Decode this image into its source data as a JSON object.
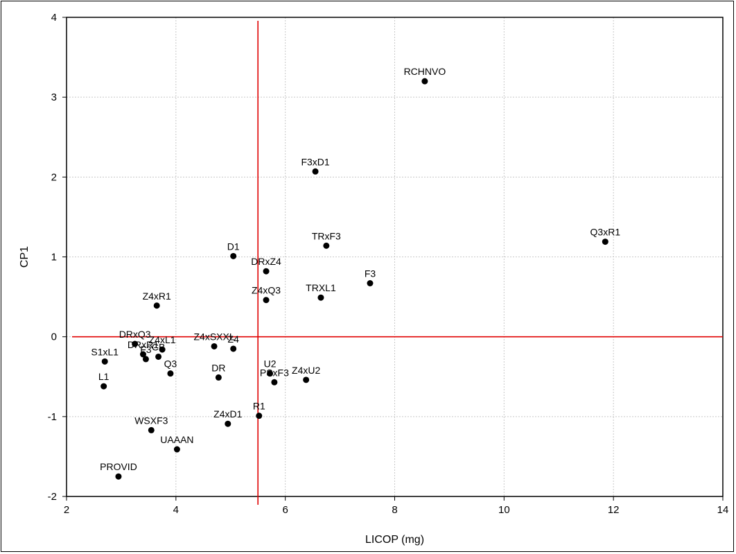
{
  "chart_data": {
    "type": "scatter",
    "title": "",
    "xlabel": "LICOP (mg)",
    "ylabel": "CP1",
    "xlim": [
      2,
      14
    ],
    "ylim": [
      -2,
      4
    ],
    "xticks": [
      2,
      4,
      6,
      8,
      10,
      12,
      14
    ],
    "yticks": [
      -2,
      -1,
      0,
      1,
      2,
      3,
      4
    ],
    "grid": true,
    "reference_lines": {
      "vertical_x": 5.5,
      "horizontal_y": 0,
      "color": "#e00000"
    },
    "marker_color": "#000000",
    "points": [
      {
        "label": "RCHNVO",
        "x": 8.55,
        "y": 3.2
      },
      {
        "label": "F3xD1",
        "x": 6.55,
        "y": 2.07
      },
      {
        "label": "Q3xR1",
        "x": 11.85,
        "y": 1.19
      },
      {
        "label": "TRxF3",
        "x": 6.75,
        "y": 1.14
      },
      {
        "label": "D1",
        "x": 5.05,
        "y": 1.01
      },
      {
        "label": "DRxZ4",
        "x": 5.65,
        "y": 0.82
      },
      {
        "label": "F3",
        "x": 7.55,
        "y": 0.67
      },
      {
        "label": "TRXL1",
        "x": 6.65,
        "y": 0.49
      },
      {
        "label": "Z4xQ3",
        "x": 5.65,
        "y": 0.46
      },
      {
        "label": "Z4xR1",
        "x": 3.65,
        "y": 0.39
      },
      {
        "label": "DRxQ3",
        "x": 3.25,
        "y": -0.09
      },
      {
        "label": "Z4xSXXL",
        "x": 4.7,
        "y": -0.12
      },
      {
        "label": "Z4",
        "x": 5.05,
        "y": -0.15
      },
      {
        "label": "Z4xL1",
        "x": 3.75,
        "y": -0.16
      },
      {
        "label": "CB",
        "x": 3.68,
        "y": -0.25
      },
      {
        "label": "F3",
        "x": 3.45,
        "y": -0.28
      },
      {
        "label": "DRxR1",
        "x": 3.4,
        "y": -0.22
      },
      {
        "label": "S1xL1",
        "x": 2.7,
        "y": -0.31
      },
      {
        "label": "Q3",
        "x": 3.9,
        "y": -0.46
      },
      {
        "label": "U2",
        "x": 5.72,
        "y": -0.46
      },
      {
        "label": "DR",
        "x": 4.78,
        "y": -0.51
      },
      {
        "label": "Z4xU2",
        "x": 6.38,
        "y": -0.54
      },
      {
        "label": "PSxF3",
        "x": 5.8,
        "y": -0.57
      },
      {
        "label": "L1",
        "x": 2.68,
        "y": -0.62
      },
      {
        "label": "R1",
        "x": 5.52,
        "y": -0.99
      },
      {
        "label": "Z4xD1",
        "x": 4.95,
        "y": -1.09
      },
      {
        "label": "WSXF3",
        "x": 3.55,
        "y": -1.17
      },
      {
        "label": "UAAAN",
        "x": 4.02,
        "y": -1.41
      },
      {
        "label": "PROVID",
        "x": 2.95,
        "y": -1.75
      }
    ]
  }
}
